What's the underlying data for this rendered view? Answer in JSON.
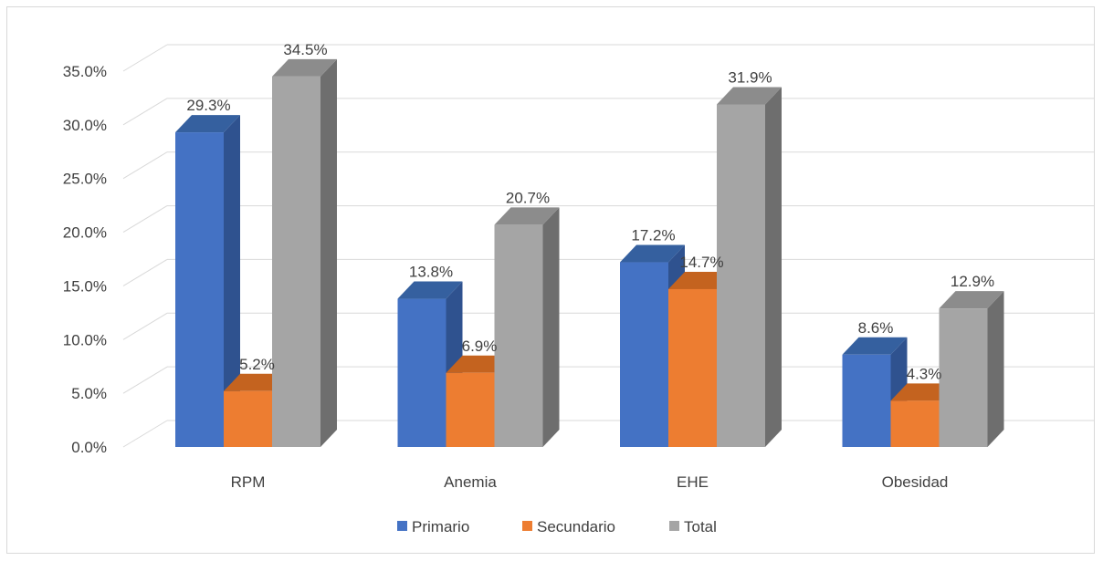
{
  "chart_data": {
    "type": "bar",
    "title": "",
    "xlabel": "",
    "ylabel": "",
    "ylim": [
      0,
      35
    ],
    "y_ticks": [
      "0.0%",
      "5.0%",
      "10.0%",
      "15.0%",
      "20.0%",
      "25.0%",
      "30.0%",
      "35.0%"
    ],
    "grid": true,
    "legend_position": "bottom",
    "categories": [
      "RPM",
      "Anemia",
      "EHE",
      "Obesidad"
    ],
    "series": [
      {
        "name": "Primario",
        "color": "#4472C4",
        "side": "#2F528F",
        "top": "#35609F",
        "values": [
          29.3,
          13.8,
          17.2,
          8.6
        ],
        "labels": [
          "29.3%",
          "13.8%",
          "17.2%",
          "8.6%"
        ]
      },
      {
        "name": "Secundario",
        "color": "#ED7D31",
        "side": "#AE5A21",
        "top": "#C4631F",
        "values": [
          5.2,
          6.9,
          14.7,
          4.3
        ],
        "labels": [
          "5.2%",
          "6.9%",
          "14.7%",
          "4.3%"
        ]
      },
      {
        "name": "Total",
        "color": "#A5A5A5",
        "side": "#6E6E6E",
        "top": "#8C8C8C",
        "values": [
          34.5,
          20.7,
          31.9,
          12.9
        ],
        "labels": [
          "34.5%",
          "20.7%",
          "31.9%",
          "12.9%"
        ]
      }
    ]
  }
}
